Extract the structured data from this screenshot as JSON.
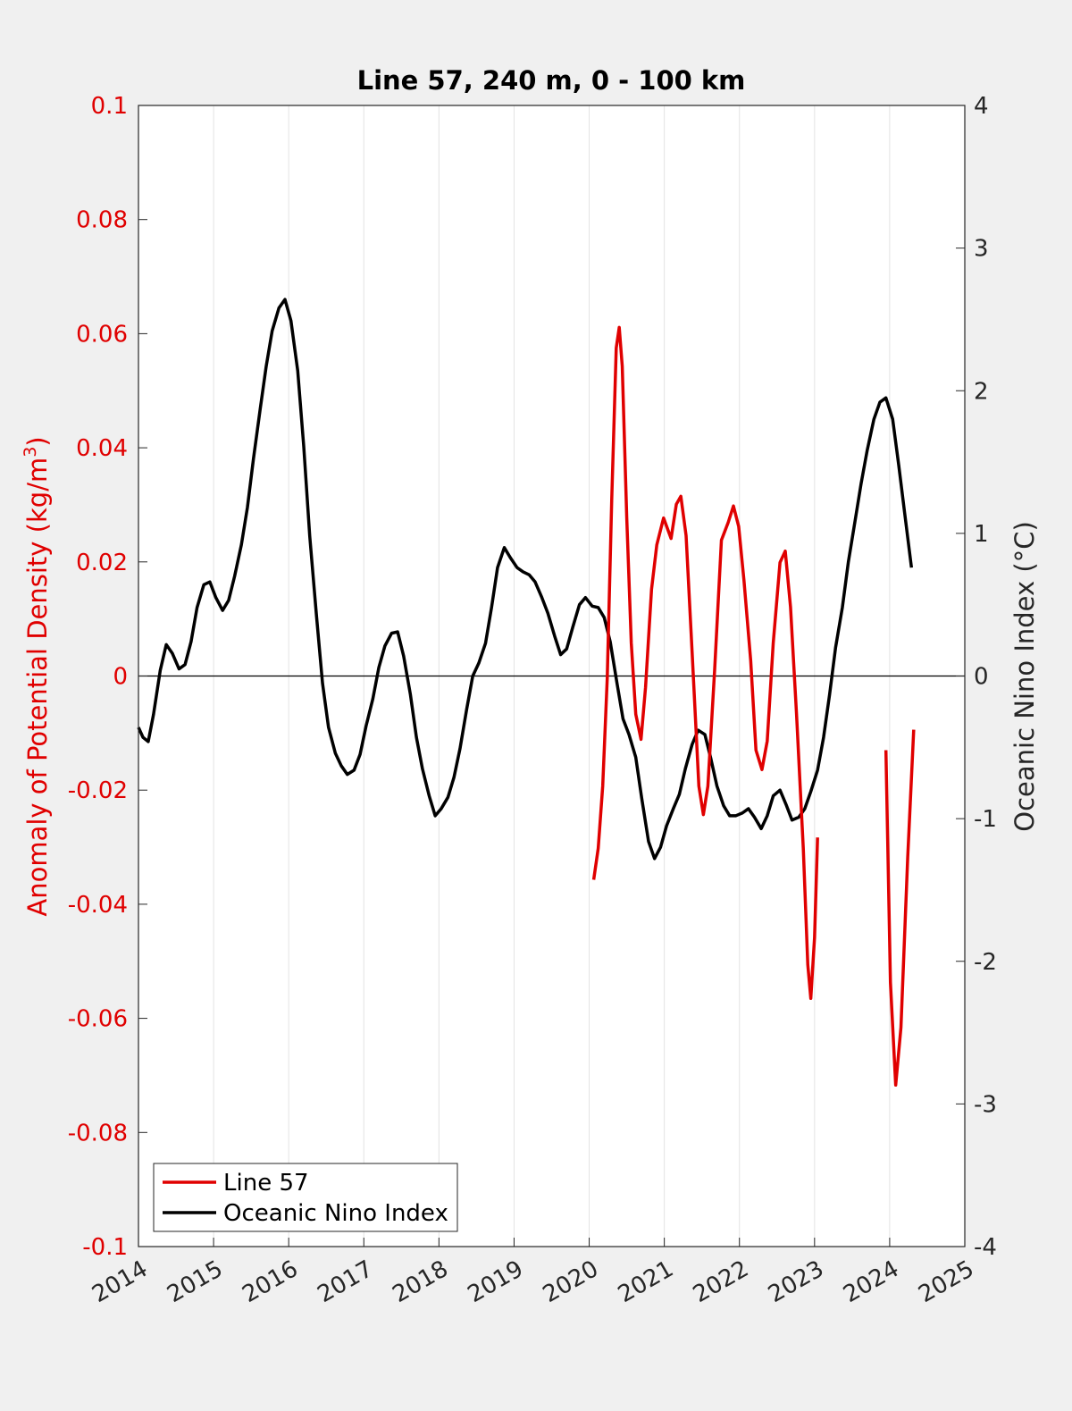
{
  "chart_data": {
    "type": "line",
    "title": "Line 57, 240 m, 0 - 100 km",
    "y_label": "Anomaly of Potential Density (kg/m",
    "y_label_sup": "3",
    "y_label_end": ")",
    "y2_label": "Oceanic Nino Index (°C)",
    "xlim": [
      2014,
      2025
    ],
    "xticks": [
      2014,
      2015,
      2016,
      2017,
      2018,
      2019,
      2020,
      2021,
      2022,
      2023,
      2024,
      2025
    ],
    "ylim": [
      -0.1,
      0.1
    ],
    "yticks": [
      0.1,
      0.08,
      0.06,
      0.04,
      0.02,
      0,
      -0.02,
      -0.04,
      -0.06,
      -0.08,
      -0.1
    ],
    "y2lim": [
      -4,
      4
    ],
    "y2ticks": [
      4,
      3,
      2,
      1,
      0,
      -1,
      -2,
      -3,
      -4
    ],
    "grid": true,
    "zeroline": true,
    "legend": "lower left",
    "y_color": "#e00000",
    "series": [
      {
        "name": "Line 57",
        "color": "#e00000",
        "x": [
          2020.06,
          2020.12,
          2020.18,
          2020.24,
          2020.3,
          2020.36,
          2020.4,
          2020.44,
          2020.5,
          2020.56,
          2020.62,
          2020.69,
          2020.75,
          2020.83,
          2020.9,
          2020.99,
          2021.09,
          2021.16,
          2021.22,
          2021.29,
          2021.37,
          2021.46,
          2021.52,
          2021.58,
          2021.67,
          2021.76,
          2021.85,
          2021.92,
          2021.99,
          2022.06,
          2022.15,
          2022.22,
          2022.3,
          2022.37,
          2022.45,
          2022.54,
          2022.61,
          2022.68,
          2022.76,
          2022.85,
          2022.91,
          2022.95,
          2023.0,
          2023.04,
          2023.5,
          2023.95,
          2024.01,
          2024.08,
          2024.15,
          2024.24,
          2024.32
        ],
        "values": [
          -0.0357,
          -0.0302,
          -0.0193,
          -0.0005,
          0.0309,
          0.0575,
          0.0611,
          0.0543,
          0.0277,
          0.0058,
          -0.0067,
          -0.0111,
          -0.002,
          0.0152,
          0.023,
          0.0277,
          0.0241,
          0.0301,
          0.0315,
          0.0246,
          0.0042,
          -0.0193,
          -0.0243,
          -0.0193,
          0.0011,
          0.0238,
          0.0269,
          0.0298,
          0.0262,
          0.0168,
          0.0027,
          -0.013,
          -0.0164,
          -0.0114,
          0.0058,
          0.0199,
          0.0219,
          0.0121,
          -0.0067,
          -0.0302,
          -0.0506,
          -0.0565,
          -0.0458,
          -0.0283,
          null,
          -0.013,
          -0.0537,
          -0.0717,
          -0.0616,
          -0.0318,
          -0.0094
        ]
      },
      {
        "name": "Oceanic Nino Index",
        "color": "#000000",
        "axis": "y2",
        "x": [
          2014.0,
          2014.06,
          2014.13,
          2014.2,
          2014.29,
          2014.37,
          2014.45,
          2014.54,
          2014.62,
          2014.7,
          2014.78,
          2014.87,
          2014.95,
          2015.03,
          2015.12,
          2015.2,
          2015.28,
          2015.37,
          2015.45,
          2015.53,
          2015.62,
          2015.7,
          2015.78,
          2015.87,
          2015.95,
          2016.03,
          2016.12,
          2016.2,
          2016.28,
          2016.37,
          2016.45,
          2016.53,
          2016.62,
          2016.7,
          2016.78,
          2016.87,
          2016.95,
          2017.03,
          2017.12,
          2017.2,
          2017.28,
          2017.37,
          2017.45,
          2017.53,
          2017.62,
          2017.7,
          2017.78,
          2017.87,
          2017.95,
          2018.03,
          2018.12,
          2018.2,
          2018.28,
          2018.37,
          2018.45,
          2018.53,
          2018.62,
          2018.7,
          2018.78,
          2018.87,
          2018.95,
          2019.04,
          2019.12,
          2019.2,
          2019.28,
          2019.37,
          2019.45,
          2019.54,
          2019.62,
          2019.7,
          2019.78,
          2019.87,
          2019.95,
          2020.04,
          2020.12,
          2020.2,
          2020.28,
          2020.37,
          2020.45,
          2020.53,
          2020.62,
          2020.7,
          2020.79,
          2020.87,
          2020.95,
          2021.03,
          2021.12,
          2021.2,
          2021.28,
          2021.37,
          2021.45,
          2021.54,
          2021.62,
          2021.7,
          2021.79,
          2021.87,
          2021.95,
          2022.04,
          2022.12,
          2022.2,
          2022.29,
          2022.37,
          2022.45,
          2022.54,
          2022.62,
          2022.7,
          2022.79,
          2022.87,
          2022.95,
          2023.04,
          2023.12,
          2023.2,
          2023.28,
          2023.37,
          2023.45,
          2023.54,
          2023.62,
          2023.7,
          2023.79,
          2023.87,
          2023.95,
          2024.04,
          2024.12,
          2024.2,
          2024.29
        ],
        "values": [
          -0.36,
          -0.43,
          -0.46,
          -0.27,
          0.04,
          0.22,
          0.16,
          0.05,
          0.08,
          0.24,
          0.48,
          0.64,
          0.66,
          0.55,
          0.46,
          0.53,
          0.7,
          0.92,
          1.18,
          1.52,
          1.87,
          2.17,
          2.42,
          2.58,
          2.64,
          2.49,
          2.14,
          1.61,
          0.98,
          0.42,
          -0.05,
          -0.36,
          -0.54,
          -0.63,
          -0.69,
          -0.66,
          -0.55,
          -0.35,
          -0.16,
          0.06,
          0.21,
          0.3,
          0.31,
          0.14,
          -0.13,
          -0.43,
          -0.65,
          -0.84,
          -0.98,
          -0.93,
          -0.85,
          -0.71,
          -0.51,
          -0.23,
          0.0,
          0.09,
          0.23,
          0.48,
          0.76,
          0.9,
          0.83,
          0.76,
          0.73,
          0.71,
          0.66,
          0.55,
          0.44,
          0.28,
          0.15,
          0.19,
          0.34,
          0.5,
          0.55,
          0.49,
          0.48,
          0.41,
          0.24,
          -0.05,
          -0.3,
          -0.41,
          -0.57,
          -0.86,
          -1.16,
          -1.28,
          -1.2,
          -1.05,
          -0.93,
          -0.83,
          -0.65,
          -0.48,
          -0.38,
          -0.41,
          -0.58,
          -0.77,
          -0.91,
          -0.98,
          -0.98,
          -0.96,
          -0.93,
          -0.99,
          -1.07,
          -0.98,
          -0.84,
          -0.8,
          -0.9,
          -1.01,
          -0.99,
          -0.93,
          -0.81,
          -0.66,
          -0.43,
          -0.13,
          0.2,
          0.48,
          0.8,
          1.09,
          1.35,
          1.58,
          1.8,
          1.92,
          1.95,
          1.8,
          1.48,
          1.14,
          0.76
        ]
      }
    ]
  }
}
